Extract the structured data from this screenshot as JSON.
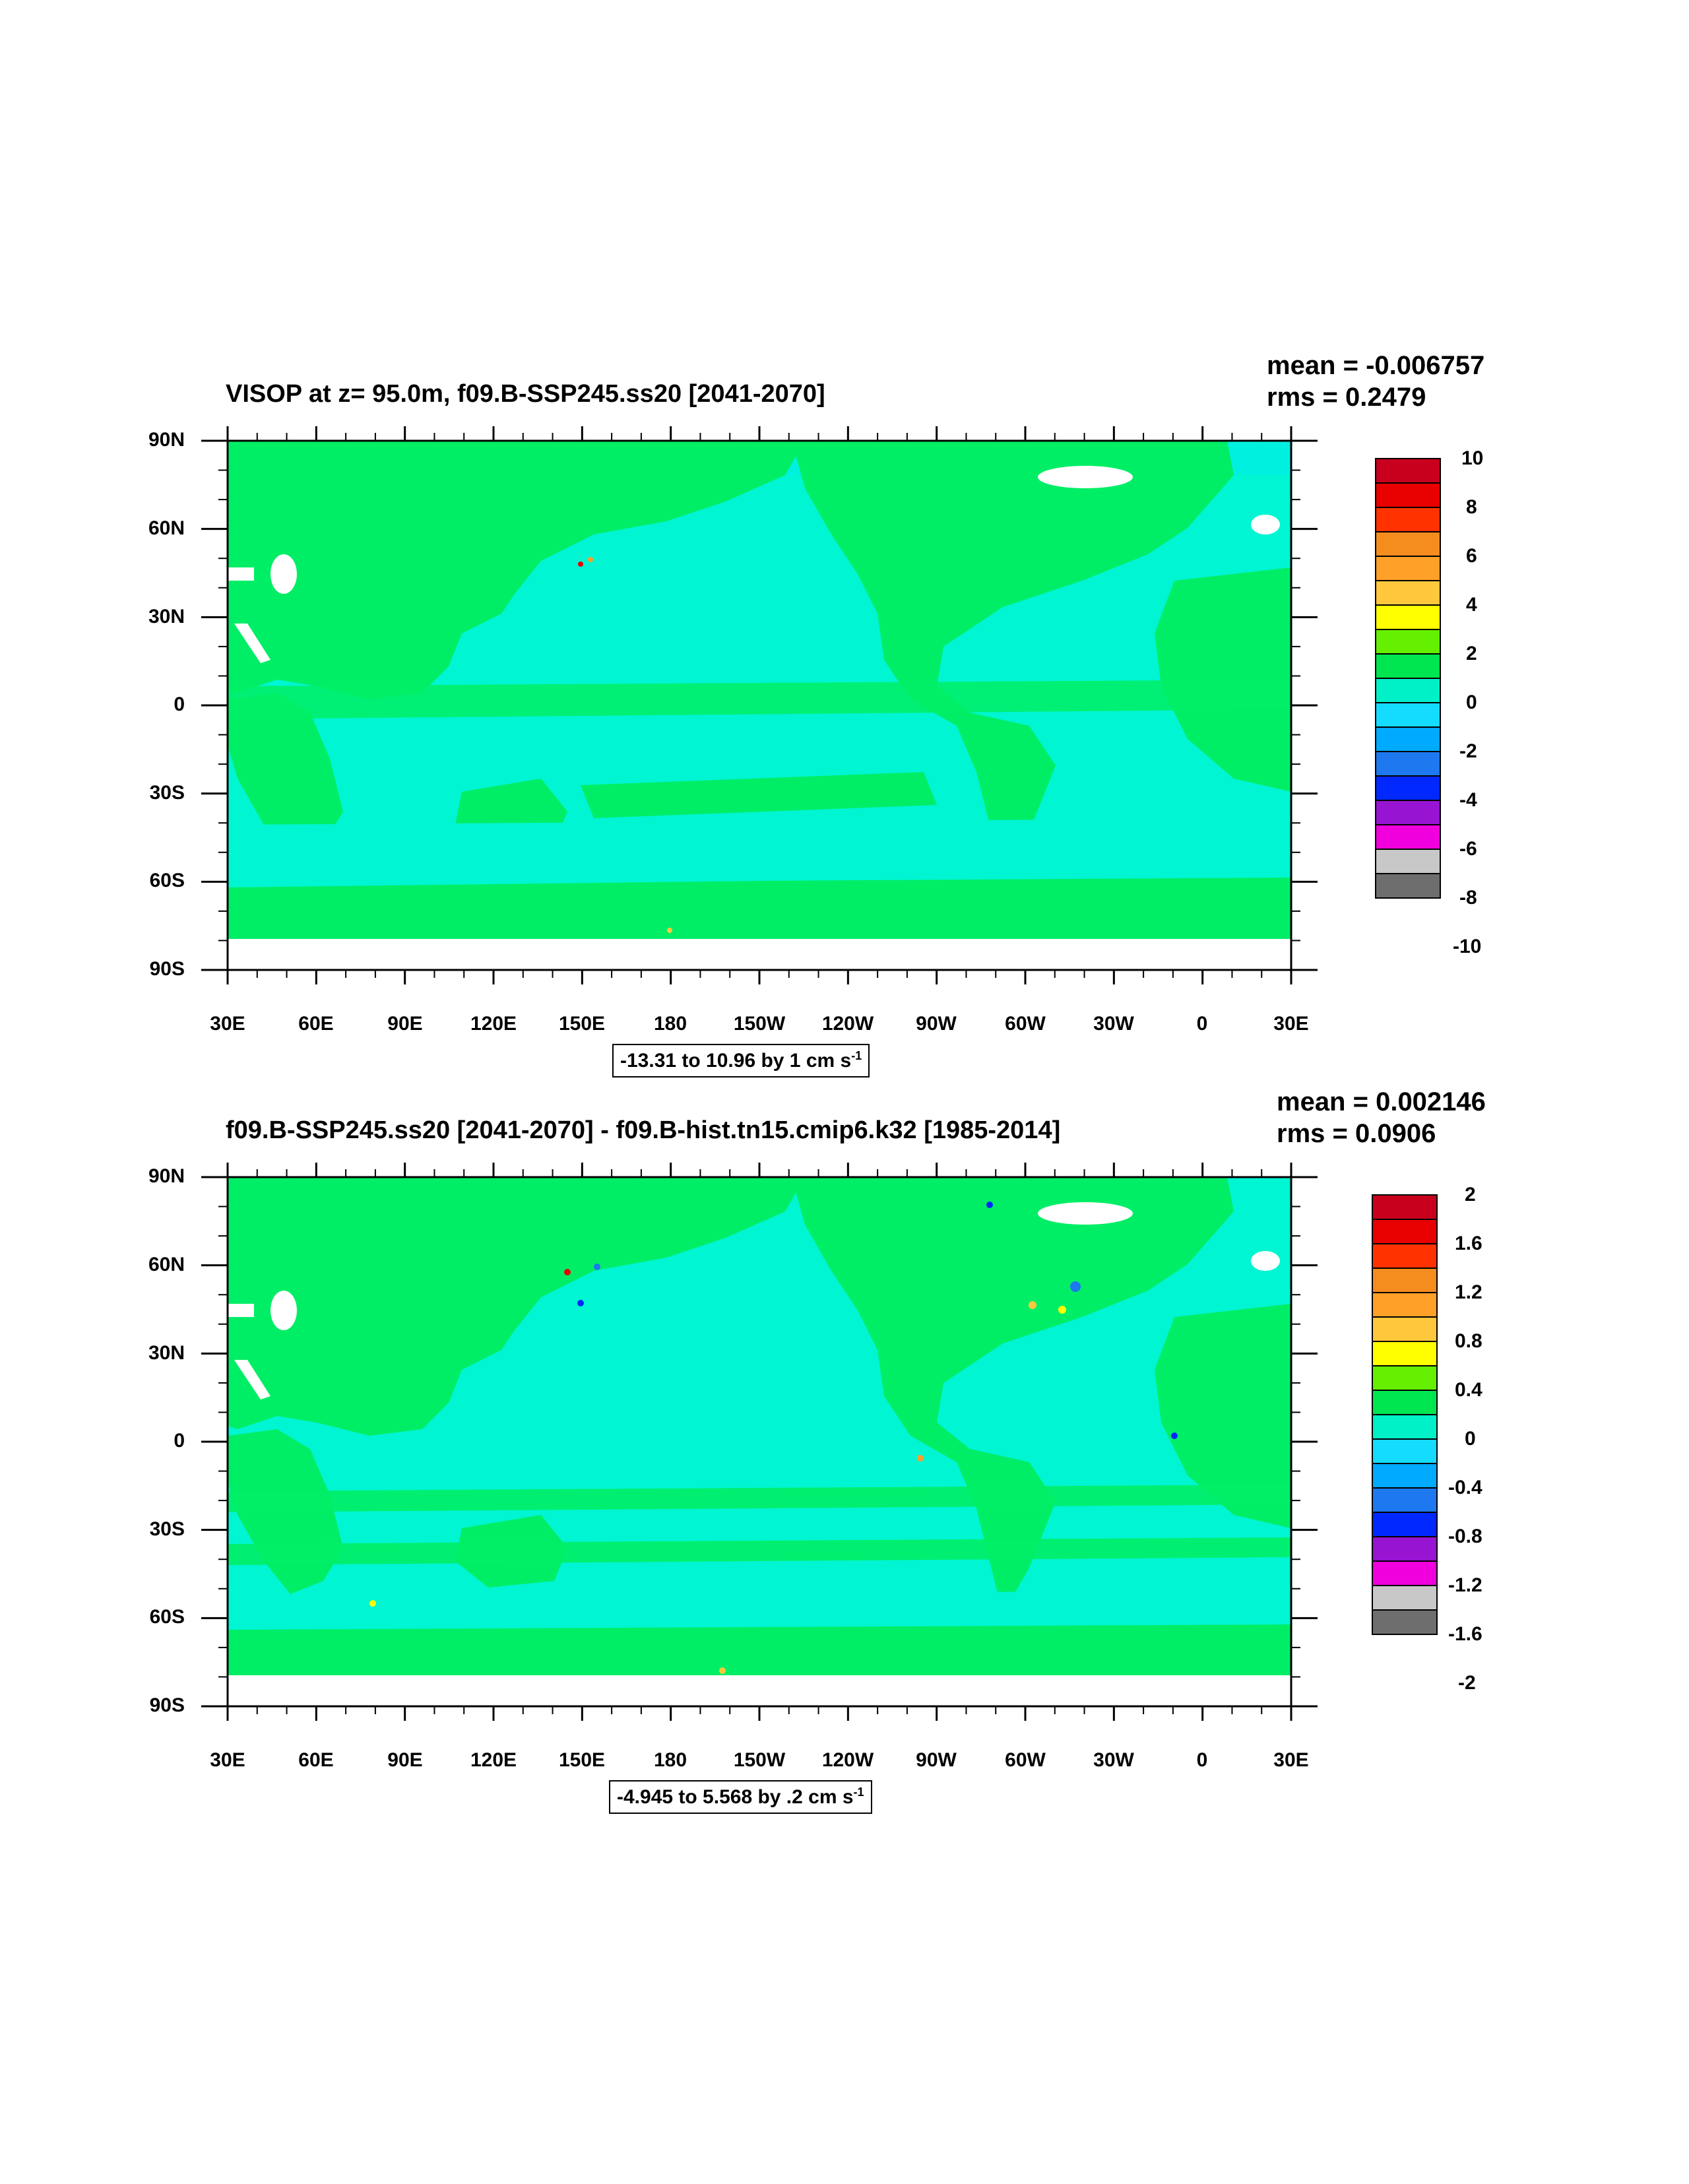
{
  "panels": [
    {
      "title": "VISOP at z=  95.0m, f09.B-SSP245.ss20 [2041-2070]",
      "mean": "mean = -0.006757",
      "rms": "rms = 0.2479",
      "range_text": "-13.31 to 10.96 by 1 cm s",
      "range_sup": "-1",
      "lat_labels": [
        "90N",
        "60N",
        "30N",
        "0",
        "30S",
        "60S",
        "90S"
      ],
      "lon_labels": [
        "30E",
        "60E",
        "90E",
        "120E",
        "150E",
        "180",
        "150W",
        "120W",
        "90W",
        "60W",
        "30W",
        "0",
        "30E"
      ],
      "colorbar_labels": [
        "10",
        "8",
        "6",
        "4",
        "2",
        "0",
        "-2",
        "-4",
        "-6",
        "-8",
        "-10"
      ]
    },
    {
      "title": "f09.B-SSP245.ss20 [2041-2070] - f09.B-hist.tn15.cmip6.k32 [1985-2014]",
      "mean": "mean = 0.002146",
      "rms": "rms = 0.0906",
      "range_text": "-4.945 to 5.568 by .2 cm s",
      "range_sup": "-1",
      "lat_labels": [
        "90N",
        "60N",
        "30N",
        "0",
        "30S",
        "60S",
        "90S"
      ],
      "lon_labels": [
        "30E",
        "60E",
        "90E",
        "120E",
        "150E",
        "180",
        "150W",
        "120W",
        "90W",
        "60W",
        "30W",
        "0",
        "30E"
      ],
      "colorbar_labels": [
        "2",
        "1.6",
        "1.2",
        "0.8",
        "0.4",
        "0",
        "-0.4",
        "-0.8",
        "-1.2",
        "-1.6",
        "-2"
      ]
    }
  ],
  "colors": {
    "palette": [
      "#c8001e",
      "#e80000",
      "#ff3200",
      "#f58c1e",
      "#ffa028",
      "#ffc83c",
      "#ffff00",
      "#64f000",
      "#00e650",
      "#00f0c8",
      "#14dcff",
      "#00aaff",
      "#1e78f0",
      "#0028ff",
      "#9614d2",
      "#f000dc",
      "#c8c8c8",
      "#6e6e6e"
    ],
    "land_green": "#00ee66",
    "ocean_cyan": "#00f5d2",
    "missing": "#ffffff"
  }
}
